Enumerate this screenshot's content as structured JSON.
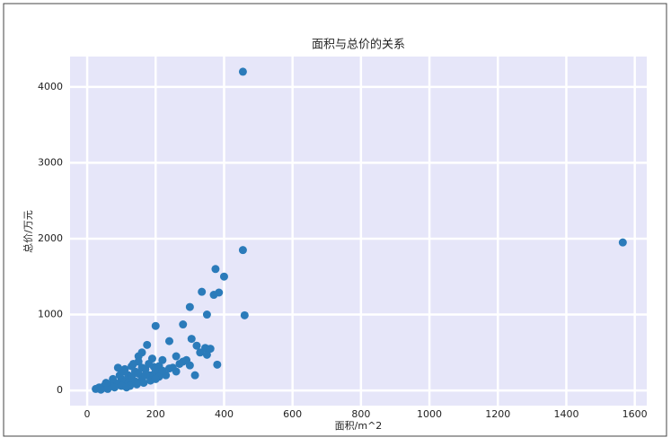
{
  "chart_data": {
    "type": "scatter",
    "title": "面积与总价的关系",
    "x_label": "面积/m^2",
    "y_label": "总价/万元",
    "x": [
      455,
      1565,
      455,
      375,
      400,
      335,
      385,
      370,
      300,
      350,
      460,
      200,
      280,
      240,
      175,
      305,
      320,
      345,
      360,
      380,
      330,
      350,
      260,
      220,
      280,
      300,
      210,
      240,
      260,
      315,
      160,
      150,
      190,
      25,
      35,
      45,
      50,
      60,
      70,
      80,
      90,
      100,
      110,
      120,
      130,
      140,
      150,
      160,
      170,
      180,
      190,
      100,
      120,
      140,
      160,
      180,
      80,
      60,
      200,
      210,
      75,
      95,
      110,
      130,
      150,
      40,
      55,
      125,
      145,
      165,
      185,
      200,
      230,
      250,
      270,
      290,
      105,
      90,
      135,
      115,
      170,
      195,
      220
    ],
    "values": [
      4200,
      1950,
      1850,
      1600,
      1500,
      1300,
      1290,
      1260,
      1100,
      1000,
      990,
      850,
      870,
      650,
      600,
      680,
      590,
      560,
      550,
      340,
      500,
      470,
      450,
      400,
      380,
      330,
      320,
      290,
      250,
      200,
      500,
      450,
      420,
      20,
      40,
      30,
      60,
      50,
      80,
      100,
      90,
      150,
      120,
      200,
      180,
      250,
      220,
      300,
      280,
      350,
      200,
      60,
      100,
      120,
      150,
      200,
      40,
      20,
      250,
      180,
      150,
      200,
      280,
      320,
      380,
      10,
      100,
      60,
      80,
      100,
      130,
      150,
      200,
      300,
      350,
      400,
      250,
      300,
      350,
      40,
      200,
      310,
      260
    ],
    "color": "#2b7bba",
    "xlim": [
      -50,
      1635
    ],
    "ylim": [
      -200,
      4400
    ],
    "xticks": [
      0,
      200,
      400,
      600,
      800,
      1000,
      1200,
      1400,
      1600
    ],
    "yticks": [
      0,
      1000,
      2000,
      3000,
      4000
    ],
    "grid": true
  }
}
